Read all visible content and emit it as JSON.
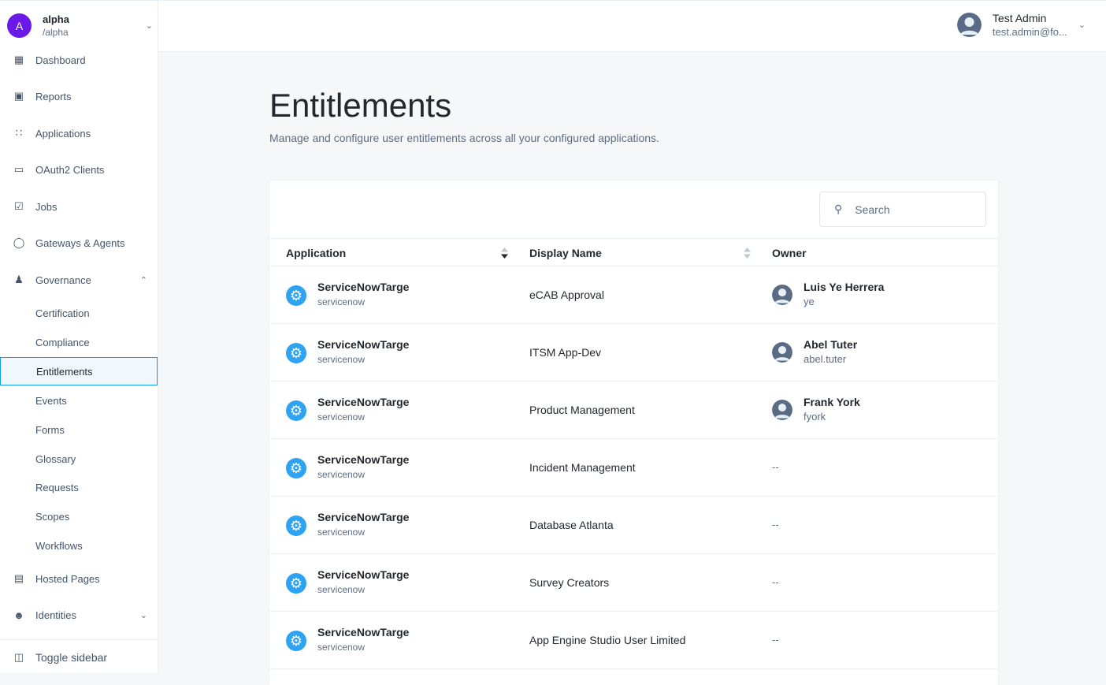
{
  "realm": {
    "initial": "A",
    "name": "alpha",
    "path": "/alpha"
  },
  "sidebar": {
    "items": [
      {
        "label": "Dashboard",
        "icon": "dashboard-icon"
      },
      {
        "label": "Reports",
        "icon": "reports-icon"
      },
      {
        "label": "Applications",
        "icon": "apps-grid-icon"
      },
      {
        "label": "OAuth2 Clients",
        "icon": "window-icon"
      },
      {
        "label": "Jobs",
        "icon": "calendar-check-icon"
      },
      {
        "label": "Gateways & Agents",
        "icon": "shield-check-icon"
      },
      {
        "label": "Governance",
        "icon": "person-check-icon"
      }
    ],
    "governance_items": [
      "Certification",
      "Compliance",
      "Entitlements",
      "Events",
      "Forms",
      "Glossary",
      "Requests",
      "Scopes",
      "Workflows"
    ],
    "active": "Entitlements",
    "hosted_pages": "Hosted Pages",
    "identities": "Identities",
    "toggle": "Toggle sidebar"
  },
  "user": {
    "name": "Test Admin",
    "email": "test.admin@fo..."
  },
  "page": {
    "title": "Entitlements",
    "subtitle": "Manage and configure user entitlements across all your configured applications."
  },
  "search": {
    "placeholder": "Search",
    "value": ""
  },
  "table": {
    "columns": [
      "Application",
      "Display Name",
      "Owner"
    ],
    "rows": [
      {
        "app": "ServiceNowTarge",
        "type": "servicenow",
        "display": "eCAB Approval",
        "owner": "Luis Ye Herrera",
        "owner_user": "ye"
      },
      {
        "app": "ServiceNowTarge",
        "type": "servicenow",
        "display": "ITSM App-Dev",
        "owner": "Abel Tuter",
        "owner_user": "abel.tuter"
      },
      {
        "app": "ServiceNowTarge",
        "type": "servicenow",
        "display": "Product Management",
        "owner": "Frank York",
        "owner_user": "fyork"
      },
      {
        "app": "ServiceNowTarge",
        "type": "servicenow",
        "display": "Incident Management",
        "owner": "--"
      },
      {
        "app": "ServiceNowTarge",
        "type": "servicenow",
        "display": "Database Atlanta",
        "owner": "--"
      },
      {
        "app": "ServiceNowTarge",
        "type": "servicenow",
        "display": "Survey Creators",
        "owner": "--"
      },
      {
        "app": "ServiceNowTarge",
        "type": "servicenow",
        "display": "App Engine Studio User Limited",
        "owner": "--"
      }
    ]
  },
  "colors": {
    "accent": "#109cf1",
    "realm_avatar": "#6b19e8",
    "app_icon": "#2ea3f2"
  }
}
